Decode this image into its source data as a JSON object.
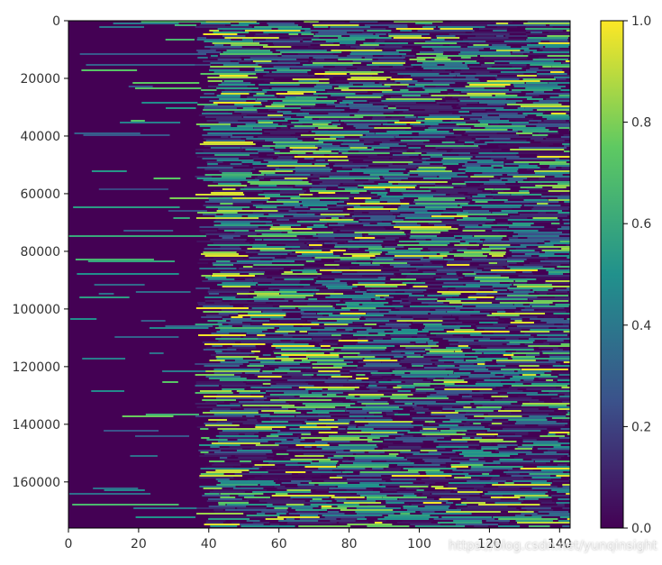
{
  "chart_data": {
    "type": "heatmap",
    "title": "",
    "xlabel": "",
    "ylabel": "",
    "x_range": [
      0,
      143
    ],
    "y_range": [
      0,
      176000
    ],
    "y_inverted": true,
    "x_ticks": [
      "0",
      "20",
      "40",
      "60",
      "80",
      "100",
      "120",
      "140"
    ],
    "y_ticks": [
      "0",
      "20000",
      "40000",
      "60000",
      "80000",
      "100000",
      "120000",
      "140000",
      "160000"
    ],
    "value_range": [
      0.0,
      1.0
    ],
    "colormap": "viridis",
    "colormap_stops": [
      "#440154",
      "#3b528b",
      "#21918c",
      "#5ec962",
      "#fde725"
    ],
    "colorbar_ticks": [
      "0.0",
      "0.2",
      "0.4",
      "0.6",
      "0.8",
      "1.0"
    ],
    "pattern": [
      {
        "x_from": 0,
        "x_to": 38,
        "mean_value": 0.03
      },
      {
        "x_from": 38,
        "x_to": 143,
        "mean_value": 0.3
      }
    ]
  },
  "watermark": "https://blog.csdn.net/yunqinsight"
}
